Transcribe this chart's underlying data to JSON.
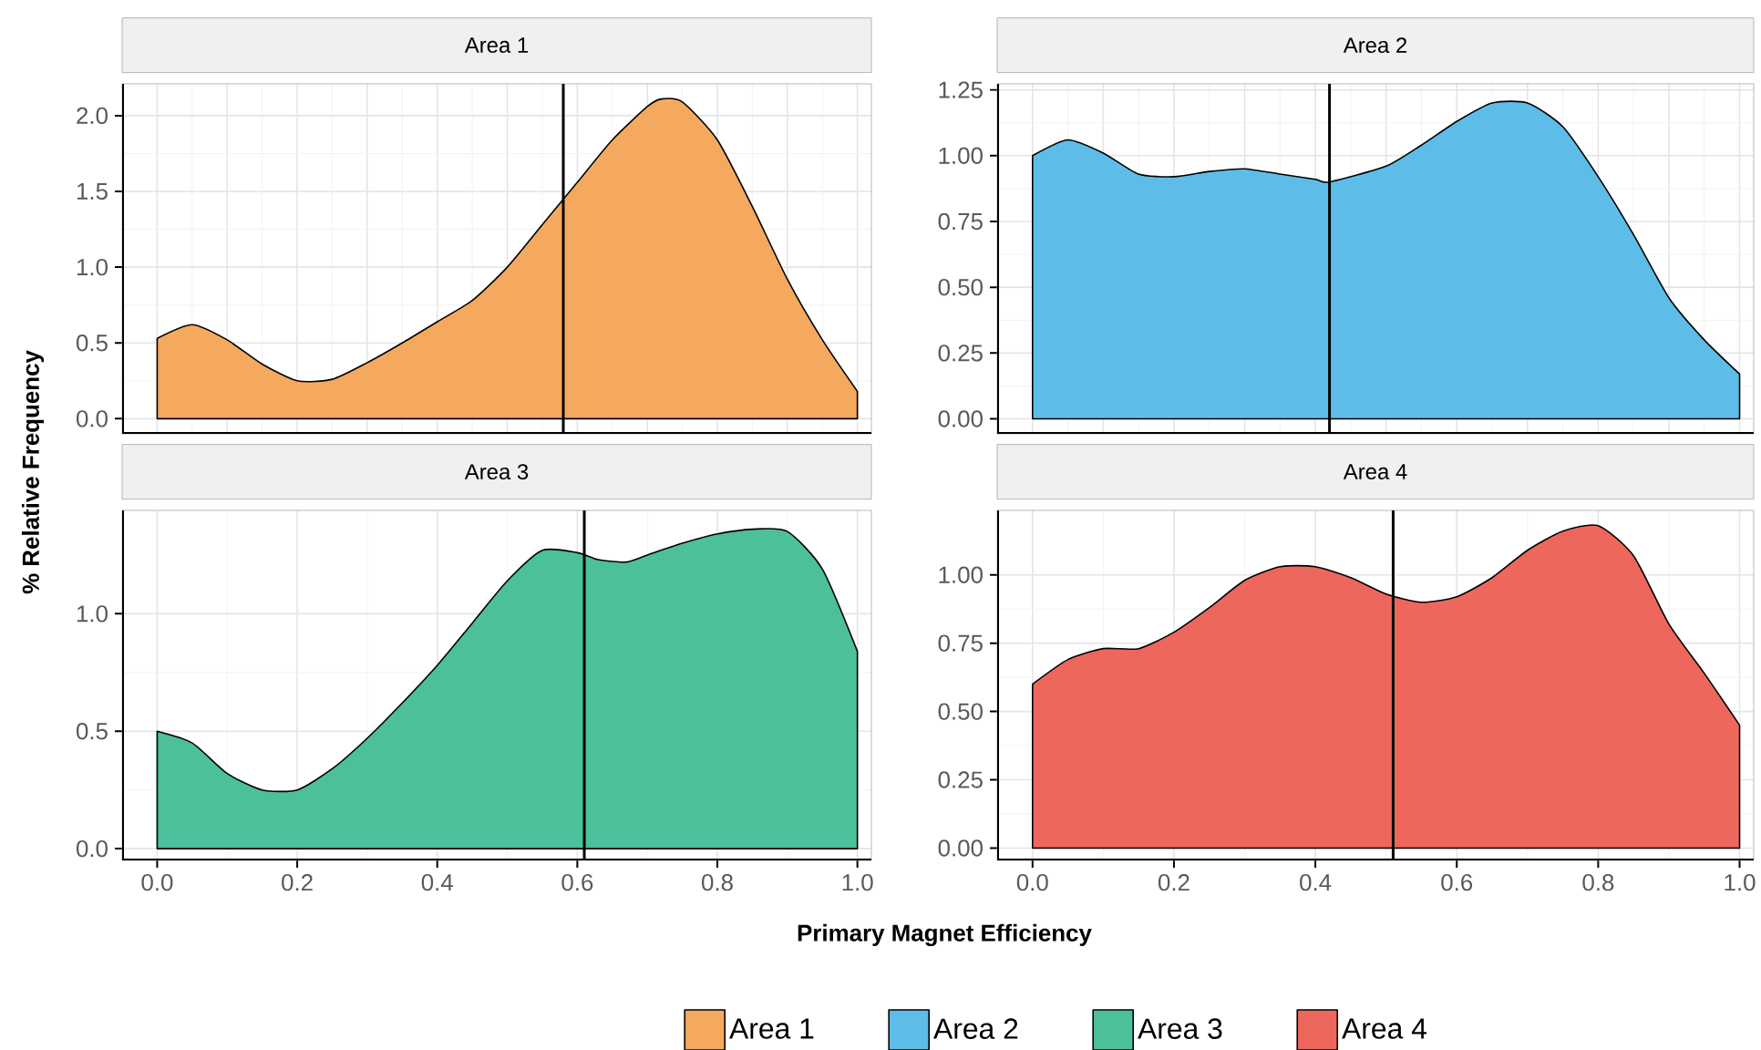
{
  "chart_data": [
    {
      "type": "area",
      "title": "Area 1",
      "ylabel": "% Relative Frequency",
      "grid": true,
      "legend": "bottom",
      "tick_labels": "y",
      "xlim": [
        -0.05,
        1.02
      ],
      "ylim": [
        -0.1,
        2.21
      ],
      "yticks": [
        {
          "value": 0,
          "label": "0.0"
        },
        {
          "value": 0.5,
          "label": "0.5"
        },
        {
          "value": 1,
          "label": "1.0"
        },
        {
          "value": 1.5,
          "label": "1.5"
        },
        {
          "value": 2,
          "label": "2.0"
        }
      ],
      "ref_lines": [
        {
          "axis": "x",
          "value": 0.58,
          "color": "#000000"
        }
      ],
      "series": [
        {
          "name": "Area 1",
          "color": "#f5a95e",
          "x": [
            0,
            0.05,
            0.1,
            0.15,
            0.2,
            0.25,
            0.3,
            0.35,
            0.4,
            0.45,
            0.5,
            0.55,
            0.6,
            0.65,
            0.7,
            0.72,
            0.75,
            0.8,
            0.85,
            0.9,
            0.95,
            1.0
          ],
          "values": [
            0.53,
            0.62,
            0.52,
            0.36,
            0.25,
            0.26,
            0.37,
            0.5,
            0.64,
            0.78,
            1.0,
            1.28,
            1.56,
            1.84,
            2.06,
            2.11,
            2.09,
            1.84,
            1.4,
            0.92,
            0.52,
            0.18
          ]
        }
      ]
    },
    {
      "type": "area",
      "title": "Area 2",
      "grid": true,
      "legend": "bottom",
      "tick_labels": "y",
      "xlim": [
        -0.05,
        1.02
      ],
      "ylim": [
        -0.057,
        1.273
      ],
      "yticks": [
        {
          "value": 0,
          "label": "0.00"
        },
        {
          "value": 0.25,
          "label": "0.25"
        },
        {
          "value": 0.5,
          "label": "0.50"
        },
        {
          "value": 0.75,
          "label": "0.75"
        },
        {
          "value": 1,
          "label": "1.00"
        },
        {
          "value": 1.25,
          "label": "1.25"
        }
      ],
      "ref_lines": [
        {
          "axis": "x",
          "value": 0.42,
          "color": "#000000"
        }
      ],
      "series": [
        {
          "name": "Area 2",
          "color": "#5dbde8",
          "x": [
            0,
            0.05,
            0.1,
            0.15,
            0.2,
            0.25,
            0.3,
            0.35,
            0.4,
            0.42,
            0.5,
            0.55,
            0.6,
            0.65,
            0.7,
            0.75,
            0.8,
            0.85,
            0.9,
            0.95,
            1.0
          ],
          "values": [
            1.0,
            1.06,
            1.01,
            0.93,
            0.92,
            0.94,
            0.95,
            0.93,
            0.91,
            0.9,
            0.96,
            1.04,
            1.13,
            1.2,
            1.2,
            1.11,
            0.92,
            0.7,
            0.46,
            0.3,
            0.17
          ]
        }
      ]
    },
    {
      "type": "area",
      "title": "Area 3",
      "xlabel": "Primary Magnet Efficiency",
      "grid": true,
      "legend": "bottom",
      "xlim": [
        -0.05,
        1.02
      ],
      "ylim": [
        -0.05,
        1.44
      ],
      "xticks": [
        {
          "value": 0,
          "label": "0.0"
        },
        {
          "value": 0.2,
          "label": "0.2"
        },
        {
          "value": 0.4,
          "label": "0.4"
        },
        {
          "value": 0.6,
          "label": "0.6"
        },
        {
          "value": 0.8,
          "label": "0.8"
        },
        {
          "value": 1,
          "label": "1.0"
        }
      ],
      "yticks": [
        {
          "value": 0,
          "label": "0.0"
        },
        {
          "value": 0.5,
          "label": "0.5"
        },
        {
          "value": 1,
          "label": "1.0"
        }
      ],
      "ref_lines": [
        {
          "axis": "x",
          "value": 0.61,
          "color": "#000000"
        }
      ],
      "series": [
        {
          "name": "Area 3",
          "color": "#4cbf9b",
          "x": [
            0,
            0.05,
            0.1,
            0.15,
            0.2,
            0.25,
            0.3,
            0.35,
            0.4,
            0.45,
            0.5,
            0.55,
            0.6,
            0.63,
            0.67,
            0.7,
            0.75,
            0.8,
            0.85,
            0.9,
            0.95,
            1.0
          ],
          "values": [
            0.5,
            0.45,
            0.32,
            0.25,
            0.25,
            0.34,
            0.47,
            0.62,
            0.78,
            0.96,
            1.14,
            1.27,
            1.26,
            1.23,
            1.22,
            1.25,
            1.3,
            1.34,
            1.36,
            1.35,
            1.19,
            0.84
          ]
        }
      ]
    },
    {
      "type": "area",
      "title": "Area 4",
      "grid": true,
      "legend": "bottom",
      "xlim": [
        -0.05,
        1.02
      ],
      "ylim": [
        -0.045,
        1.236
      ],
      "xticks": [
        {
          "value": 0,
          "label": "0.0"
        },
        {
          "value": 0.2,
          "label": "0.2"
        },
        {
          "value": 0.4,
          "label": "0.4"
        },
        {
          "value": 0.6,
          "label": "0.6"
        },
        {
          "value": 0.8,
          "label": "0.8"
        },
        {
          "value": 1,
          "label": "1.0"
        }
      ],
      "yticks": [
        {
          "value": 0,
          "label": "0.00"
        },
        {
          "value": 0.25,
          "label": "0.25"
        },
        {
          "value": 0.5,
          "label": "0.50"
        },
        {
          "value": 0.75,
          "label": "0.75"
        },
        {
          "value": 1,
          "label": "1.00"
        }
      ],
      "ref_lines": [
        {
          "axis": "x",
          "value": 0.51,
          "color": "#000000"
        }
      ],
      "series": [
        {
          "name": "Area 4",
          "color": "#ee675c",
          "x": [
            0,
            0.05,
            0.1,
            0.15,
            0.2,
            0.25,
            0.3,
            0.35,
            0.4,
            0.45,
            0.5,
            0.55,
            0.6,
            0.65,
            0.7,
            0.75,
            0.8,
            0.85,
            0.9,
            0.95,
            1.0
          ],
          "values": [
            0.6,
            0.69,
            0.73,
            0.73,
            0.79,
            0.88,
            0.98,
            1.03,
            1.03,
            0.99,
            0.93,
            0.9,
            0.92,
            0.99,
            1.09,
            1.16,
            1.18,
            1.07,
            0.82,
            0.64,
            0.45
          ]
        }
      ]
    }
  ]
}
